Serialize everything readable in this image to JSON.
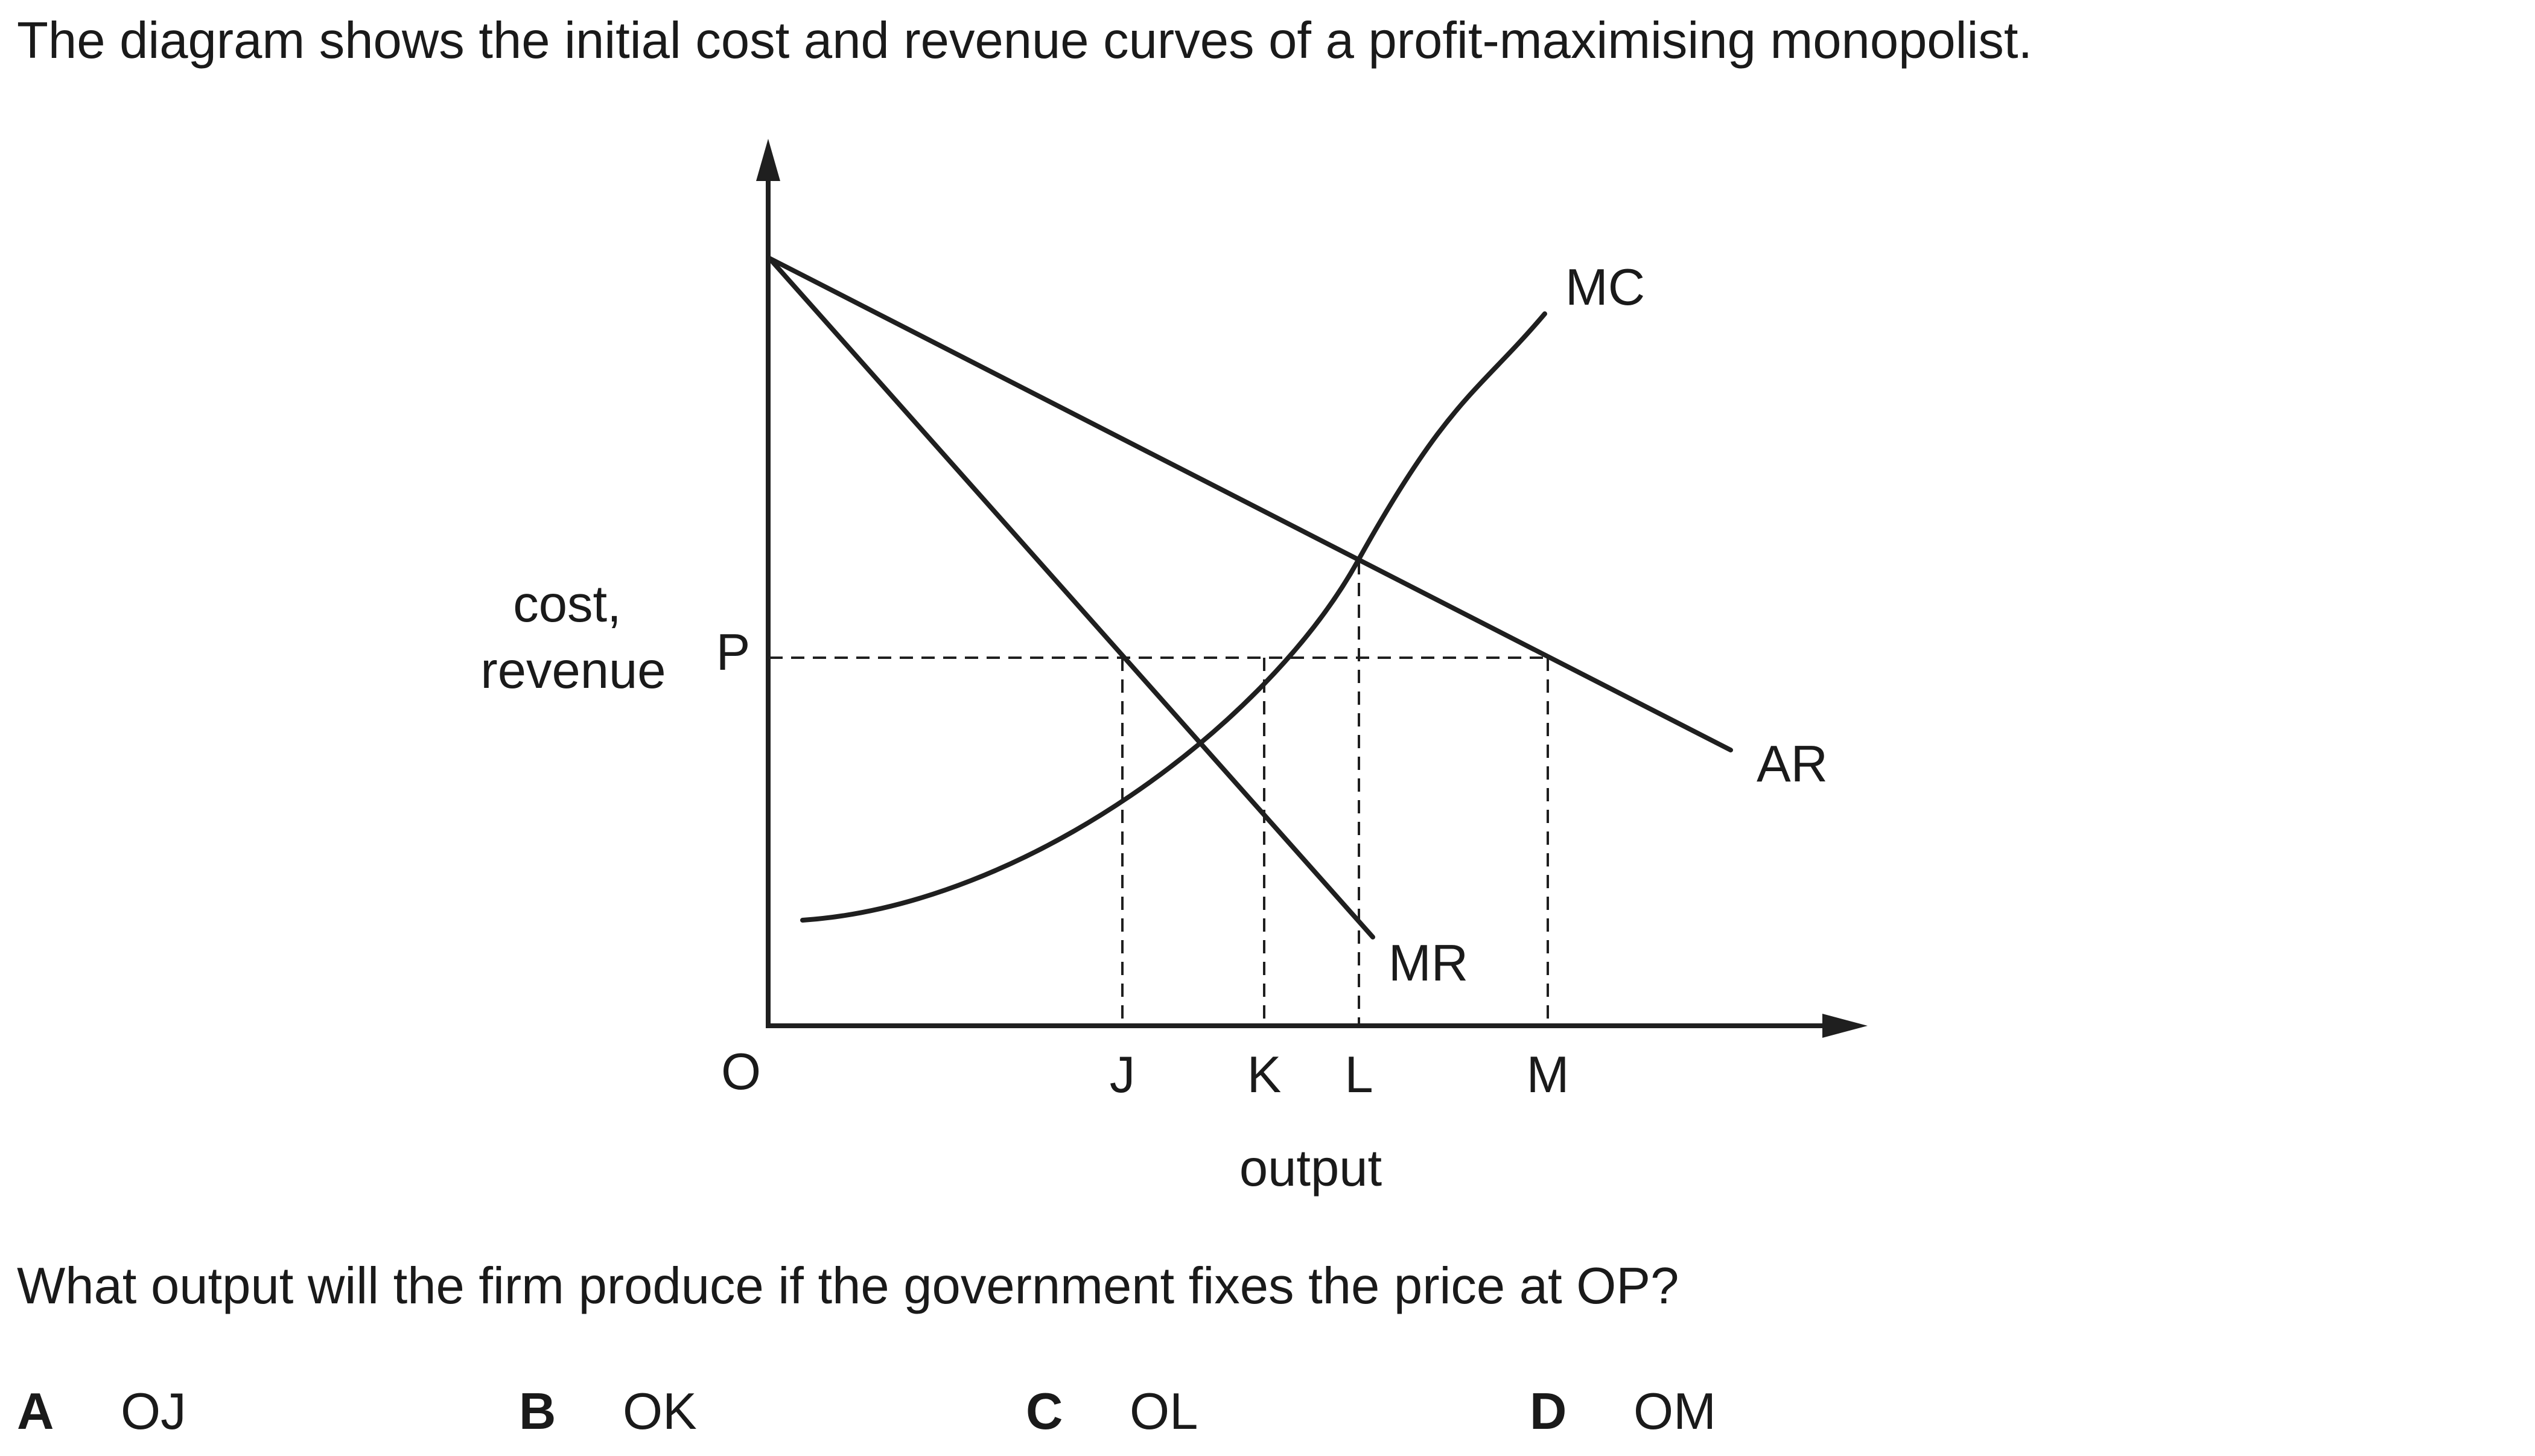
{
  "intro_text": "The diagram shows the initial cost and revenue curves of a profit-maximising monopolist.",
  "diagram": {
    "y_axis_label_line1": "cost,",
    "y_axis_label_line2": "revenue",
    "x_axis_label": "output",
    "origin_label": "O",
    "price_label": "P",
    "x_points": [
      "J",
      "K",
      "L",
      "M"
    ],
    "curve_labels": {
      "mc": "MC",
      "ar": "AR",
      "mr": "MR"
    }
  },
  "question_text": "What output will the firm produce if the government fixes the price at OP?",
  "options": [
    {
      "letter": "A",
      "answer": "OJ"
    },
    {
      "letter": "B",
      "answer": "OK"
    },
    {
      "letter": "C",
      "answer": "OL"
    },
    {
      "letter": "D",
      "answer": "OM"
    }
  ]
}
